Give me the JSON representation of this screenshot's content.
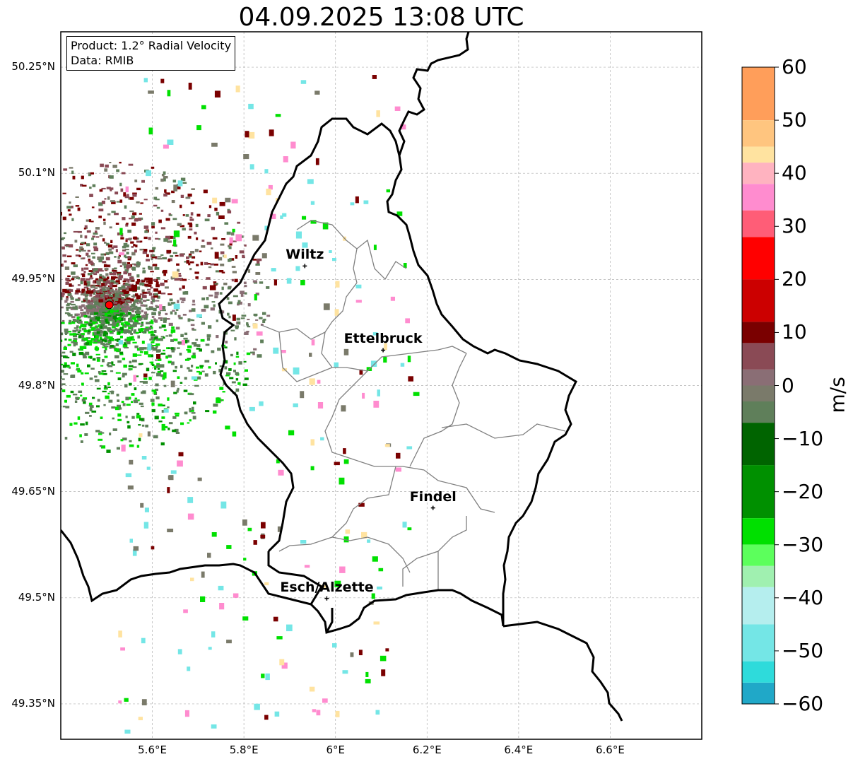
{
  "title": "04.09.2025 13:08 UTC",
  "info": {
    "product": "Product: 1.2° Radial Velocity",
    "source": "Data: RMIB"
  },
  "map": {
    "extent": {
      "lon": [
        5.4,
        6.8
      ],
      "lat": [
        49.3,
        50.3
      ]
    },
    "lat_ticks": [
      {
        "value": 50.25,
        "label": "50.25°N"
      },
      {
        "value": 50.1,
        "label": "50.1°N"
      },
      {
        "value": 49.95,
        "label": "49.95°N"
      },
      {
        "value": 49.8,
        "label": "49.8°N"
      },
      {
        "value": 49.65,
        "label": "49.65°N"
      },
      {
        "value": 49.5,
        "label": "49.5°N"
      },
      {
        "value": 49.35,
        "label": "49.35°N"
      }
    ],
    "lon_ticks": [
      {
        "value": 5.6,
        "label": "5.6°E"
      },
      {
        "value": 5.8,
        "label": "5.8°E"
      },
      {
        "value": 6.0,
        "label": "6°E"
      },
      {
        "value": 6.2,
        "label": "6.2°E"
      },
      {
        "value": 6.4,
        "label": "6.4°E"
      },
      {
        "value": 6.6,
        "label": "6.6°E"
      }
    ],
    "grid": true,
    "radar_site": {
      "lon": 5.506,
      "lat": 49.914
    },
    "cities": [
      {
        "name": "Wiltz",
        "lon": 5.933,
        "lat": 49.969
      },
      {
        "name": "Ettelbruck",
        "lon": 6.104,
        "lat": 49.85
      },
      {
        "name": "Findel",
        "lon": 6.213,
        "lat": 49.627
      },
      {
        "name": "Esch/Alzette",
        "lon": 5.981,
        "lat": 49.499
      }
    ]
  },
  "colorbar": {
    "label": "m/s",
    "range": [
      -60,
      60
    ],
    "ticks": [
      "60",
      "50",
      "40",
      "30",
      "20",
      "10",
      "0",
      "−10",
      "−20",
      "−30",
      "−40",
      "−50",
      "−60"
    ],
    "tick_values": [
      60,
      50,
      40,
      30,
      20,
      10,
      0,
      -10,
      -20,
      -30,
      -40,
      -50,
      -60
    ],
    "stops": [
      {
        "v": 60,
        "color": "#ff9e5a"
      },
      {
        "v": 50,
        "color": "#ffc57f"
      },
      {
        "v": 45,
        "color": "#ffe3a0"
      },
      {
        "v": 42,
        "color": "#ffb3c0"
      },
      {
        "v": 38,
        "color": "#ff8ccf"
      },
      {
        "v": 33,
        "color": "#ff5d77"
      },
      {
        "v": 28,
        "color": "#ff0000"
      },
      {
        "v": 20,
        "color": "#cc0000"
      },
      {
        "v": 12,
        "color": "#7a0000"
      },
      {
        "v": 8,
        "color": "#8a4a55"
      },
      {
        "v": 3,
        "color": "#8a6e75"
      },
      {
        "v": 0,
        "color": "#7a7a6a"
      },
      {
        "v": -3,
        "color": "#5f7f5a"
      },
      {
        "v": -7,
        "color": "#006400"
      },
      {
        "v": -15,
        "color": "#009000"
      },
      {
        "v": -25,
        "color": "#00e000"
      },
      {
        "v": -30,
        "color": "#5cff5c"
      },
      {
        "v": -34,
        "color": "#a0f0b0"
      },
      {
        "v": -38,
        "color": "#b5eeee"
      },
      {
        "v": -45,
        "color": "#74e6e6"
      },
      {
        "v": -52,
        "color": "#2edbdb"
      },
      {
        "v": -56,
        "color": "#20a8c8"
      },
      {
        "v": -60,
        "color": "#1f7fc4"
      }
    ]
  }
}
